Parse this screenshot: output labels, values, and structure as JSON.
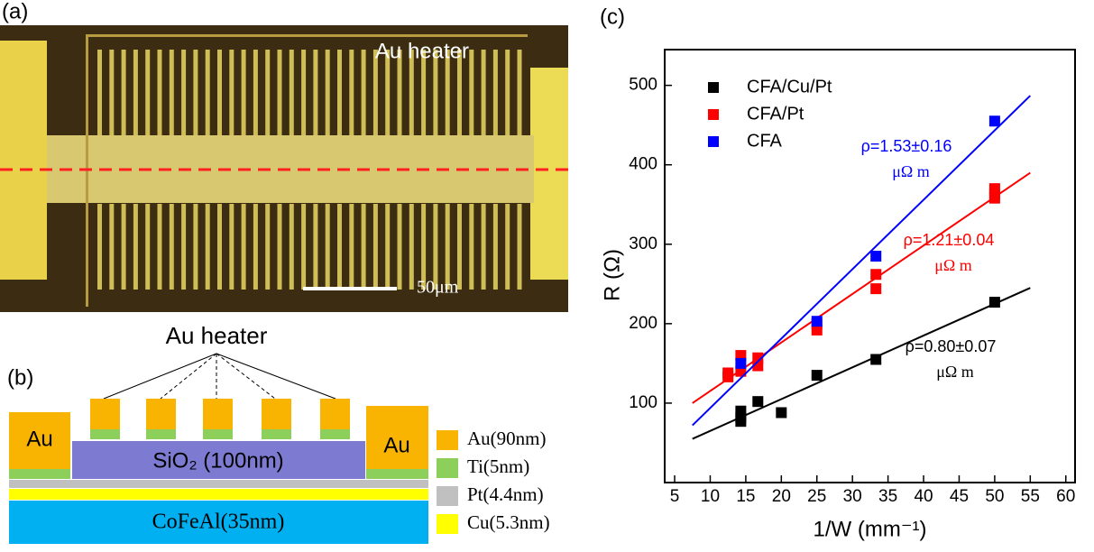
{
  "panel_a": {
    "label": "(a)",
    "heater_label": "Au heater",
    "scale_bar": "50μm"
  },
  "panel_b": {
    "label": "(b)",
    "heater_label": "Au heater",
    "left_pad": "Au",
    "right_pad": "Au",
    "oxide": "SiO₂ (100nm)",
    "magnet": "CoFeAl(35nm)",
    "legend": [
      "Au(90nm)",
      "Ti(5nm)",
      "Pt(4.4nm)",
      "Cu(5.3nm)"
    ]
  },
  "chart_data": {
    "type": "scatter",
    "panel_label": "(c)",
    "x_label": "1/W (mm⁻¹)",
    "y_label": "R (Ω)",
    "xlim": [
      3.6,
      61.3
    ],
    "ylim": [
      0,
      545
    ],
    "xticks": [
      5,
      10,
      15,
      20,
      25,
      30,
      35,
      40,
      45,
      50,
      55,
      60
    ],
    "yticks": [
      100,
      200,
      300,
      400,
      500
    ],
    "series": [
      {
        "name": "CFA/Cu/Pt",
        "color": "#000000",
        "x": [
          14.3,
          14.3,
          14.3,
          16.7,
          20,
          25,
          33.3,
          50
        ],
        "values": [
          90,
          77,
          82,
          102,
          88,
          135,
          155,
          227
        ],
        "fit": {
          "x": [
            7.5,
            55
          ],
          "values": [
            55,
            245
          ]
        }
      },
      {
        "name": "CFA/Pt",
        "color": "#ff0000",
        "x": [
          12.5,
          12.5,
          14.3,
          14.3,
          16.7,
          16.7,
          25,
          25,
          33.3,
          33.3,
          50,
          50,
          50
        ],
        "values": [
          133,
          138,
          160,
          140,
          157,
          147,
          192,
          200,
          262,
          244,
          370,
          358,
          363
        ],
        "fit": {
          "x": [
            7.5,
            55
          ],
          "values": [
            100,
            390
          ]
        }
      },
      {
        "name": "CFA",
        "color": "#0000ff",
        "x": [
          14.3,
          25,
          33.3,
          50
        ],
        "values": [
          150,
          203,
          285,
          455
        ],
        "fit": {
          "x": [
            7.5,
            55
          ],
          "values": [
            72,
            487
          ]
        }
      }
    ],
    "annotations": [
      {
        "text": "ρ=1.53±0.16",
        "unit": "μΩ m",
        "color": "#0000ff"
      },
      {
        "text": "ρ=1.21±0.04",
        "unit": "μΩ m",
        "color": "#ff0000"
      },
      {
        "text": "ρ=0.80±0.07",
        "unit": "μΩ m",
        "color": "#000000"
      }
    ]
  }
}
